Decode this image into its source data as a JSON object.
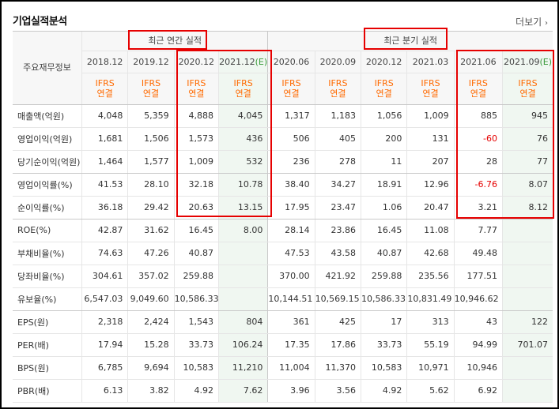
{
  "title": "기업실적분석",
  "more_label": "더보기",
  "header": {
    "corner": "주요재무정보",
    "annual_label": "최근 연간 실적",
    "quarter_label": "최근 분기 실적",
    "est_tag": "(E)",
    "periods": [
      "2018.12",
      "2019.12",
      "2020.12",
      "2021.12",
      "2020.06",
      "2020.09",
      "2020.12",
      "2021.03",
      "2021.06",
      "2021.09"
    ],
    "ifrs": "IFRS",
    "consol": "연결"
  },
  "rows": [
    {
      "label": "매출액(억원)",
      "values": [
        "4,048",
        "5,359",
        "4,888",
        "4,045",
        "1,317",
        "1,183",
        "1,056",
        "1,009",
        "885",
        "945"
      ]
    },
    {
      "label": "영업이익(억원)",
      "values": [
        "1,681",
        "1,506",
        "1,573",
        "436",
        "506",
        "405",
        "200",
        "131",
        "-60",
        "76"
      ]
    },
    {
      "label": "당기순이익(억원)",
      "values": [
        "1,464",
        "1,577",
        "1,009",
        "532",
        "236",
        "278",
        "11",
        "207",
        "28",
        "77"
      ]
    },
    {
      "label": "영업이익률(%)",
      "values": [
        "41.53",
        "28.10",
        "32.18",
        "10.78",
        "38.40",
        "34.27",
        "18.91",
        "12.96",
        "-6.76",
        "8.07"
      ]
    },
    {
      "label": "순이익률(%)",
      "values": [
        "36.18",
        "29.42",
        "20.63",
        "13.15",
        "17.95",
        "23.47",
        "1.06",
        "20.47",
        "3.21",
        "8.12"
      ]
    },
    {
      "label": "ROE(%)",
      "values": [
        "42.87",
        "31.62",
        "16.45",
        "8.00",
        "28.14",
        "23.86",
        "16.45",
        "11.08",
        "7.77",
        ""
      ]
    },
    {
      "label": "부채비율(%)",
      "values": [
        "74.63",
        "47.26",
        "40.87",
        "",
        "47.53",
        "43.58",
        "40.87",
        "42.68",
        "49.48",
        ""
      ]
    },
    {
      "label": "당좌비율(%)",
      "values": [
        "304.61",
        "357.02",
        "259.88",
        "",
        "370.00",
        "421.92",
        "259.88",
        "235.56",
        "177.51",
        ""
      ]
    },
    {
      "label": "유보율(%)",
      "values": [
        "6,547.03",
        "9,049.60",
        "10,586.33",
        "",
        "10,144.51",
        "10,569.15",
        "10,586.33",
        "10,831.49",
        "10,946.62",
        ""
      ]
    },
    {
      "label": "EPS(원)",
      "values": [
        "2,318",
        "2,424",
        "1,543",
        "804",
        "361",
        "425",
        "17",
        "313",
        "43",
        "122"
      ]
    },
    {
      "label": "PER(배)",
      "values": [
        "17.94",
        "15.28",
        "33.73",
        "106.24",
        "17.35",
        "17.86",
        "33.73",
        "55.19",
        "94.99",
        "701.07"
      ]
    },
    {
      "label": "BPS(원)",
      "values": [
        "6,785",
        "9,694",
        "10,583",
        "11,210",
        "11,004",
        "11,370",
        "10,583",
        "10,971",
        "10,946",
        ""
      ]
    },
    {
      "label": "PBR(배)",
      "values": [
        "6.13",
        "3.82",
        "4.92",
        "7.62",
        "3.96",
        "3.56",
        "4.92",
        "5.62",
        "6.92",
        ""
      ]
    }
  ],
  "colors": {
    "negative": "#e60000",
    "ifrs": "#ff6a00",
    "estimate_bg": "#f0f7f1",
    "highlight_box": "#e60000"
  }
}
